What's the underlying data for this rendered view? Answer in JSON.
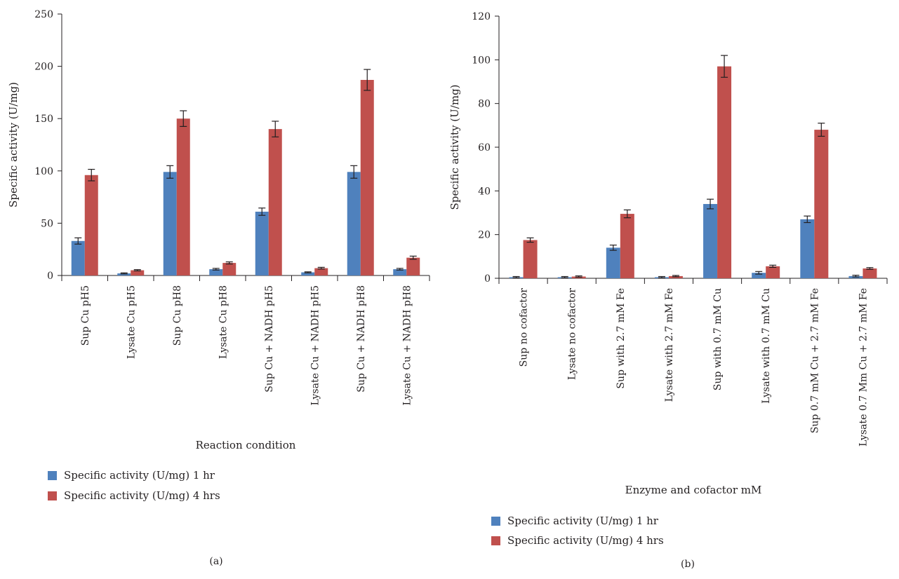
{
  "chart_data": [
    {
      "type": "bar",
      "panel_label": "(a)",
      "xlabel": "Reaction condition",
      "ylabel": "Specific activity  (U/mg)",
      "ylim": [
        0,
        250
      ],
      "yticks": [
        0,
        50,
        100,
        150,
        200,
        250
      ],
      "categories": [
        "Sup Cu pH5",
        "Lysate Cu pH5",
        "Sup Cu pH8",
        "Lysate Cu pH8",
        "Sup Cu + NADH pH5",
        "Lysate Cu + NADH pH5",
        "Sup Cu + NADH pH8",
        "Lysate Cu + NADH pH8"
      ],
      "series": [
        {
          "name": "Specific activity (U/mg) 1 hr",
          "color": "#4f81bd",
          "values": [
            33,
            2,
            99,
            6,
            61,
            3,
            99,
            6
          ],
          "errors": [
            3,
            0.5,
            6,
            0.8,
            3.5,
            0.5,
            6,
            0.8
          ]
        },
        {
          "name": "Specific activity (U/mg) 4 hrs",
          "color": "#c0504d",
          "values": [
            96,
            5,
            150,
            12,
            140,
            7,
            187,
            17
          ],
          "errors": [
            5.5,
            0.6,
            7.5,
            1,
            7.5,
            0.8,
            10,
            1.5
          ]
        }
      ],
      "legend": "bottom-left",
      "grid": false
    },
    {
      "type": "bar",
      "panel_label": "(b)",
      "xlabel": "Enzyme and cofactor mM",
      "ylabel": "Specific activity (U/mg)",
      "ylim": [
        0,
        120
      ],
      "yticks": [
        0,
        20,
        40,
        60,
        80,
        100,
        120
      ],
      "categories": [
        "Sup no cofactor",
        "Lysate no cofactor",
        "Sup with 2.7 mM Fe",
        "Lysate with 2.7 mM Fe",
        "Sup with 0.7 mM Cu",
        "Lysate with 0.7 mM Cu",
        "Sup 0.7 mM Cu + 2.7 mM Fe",
        "Lysate 0.7 Mm Cu + 2.7 mM Fe"
      ],
      "series": [
        {
          "name": "Specific activity (U/mg) 1 hr",
          "color": "#4f81bd",
          "values": [
            0.5,
            0.5,
            14,
            0.5,
            34,
            2.5,
            27,
            1
          ],
          "errors": [
            0.3,
            0.3,
            1.2,
            0.3,
            2.2,
            0.6,
            1.5,
            0.4
          ]
        },
        {
          "name": "Specific activity (U/mg) 4 hrs",
          "color": "#c0504d",
          "values": [
            17.5,
            0.8,
            29.5,
            1,
            97,
            5.5,
            68,
            4.5
          ],
          "errors": [
            1,
            0.3,
            1.8,
            0.3,
            5,
            0.5,
            3,
            0.4
          ]
        }
      ],
      "legend": "bottom-left",
      "grid": false
    }
  ]
}
